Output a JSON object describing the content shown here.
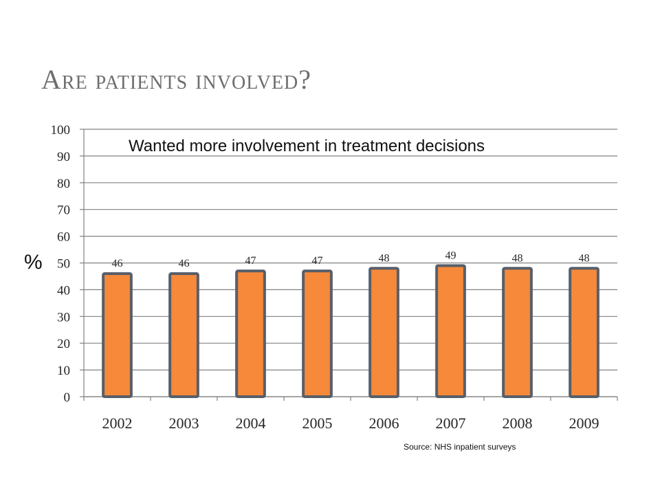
{
  "slide": {
    "title": "Are patients involved?",
    "source": "Source: NHS inpatient surveys"
  },
  "chart_data": {
    "type": "bar",
    "title": "",
    "annotation": "Wanted more involvement in treatment decisions",
    "xlabel": "",
    "ylabel": "%",
    "categories": [
      "2002",
      "2003",
      "2004",
      "2005",
      "2006",
      "2007",
      "2008",
      "2009"
    ],
    "values": [
      46,
      46,
      47,
      47,
      48,
      49,
      48,
      48
    ],
    "ylim": [
      0,
      100
    ],
    "yticks": [
      0,
      10,
      20,
      30,
      40,
      50,
      60,
      70,
      80,
      90,
      100
    ],
    "grid": true,
    "legend": "none",
    "colors": {
      "bar_fill": "#f6893a",
      "bar_stroke": "#585f69",
      "grid": "#808080",
      "axis": "#808080"
    }
  }
}
